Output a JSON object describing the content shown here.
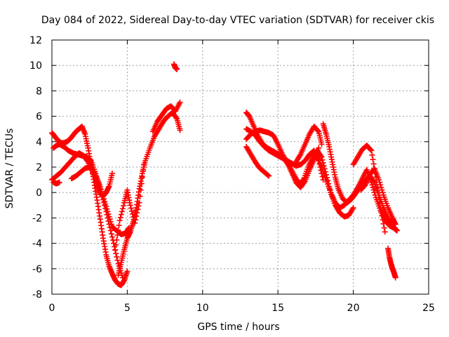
{
  "chart_data": {
    "type": "scatter",
    "title": "Day 084 of 2022, Sidereal Day-to-day VTEC variation (SDTVAR) for receiver ckis",
    "xlabel": "GPS time / hours",
    "ylabel": "SDTVAR / TECUs",
    "xlim": [
      0,
      25
    ],
    "ylim": [
      -8,
      12
    ],
    "xticks": [
      0,
      5,
      10,
      15,
      20,
      25
    ],
    "yticks": [
      -8,
      -6,
      -4,
      -2,
      0,
      2,
      4,
      6,
      8,
      10,
      12
    ],
    "grid": true,
    "marker": "+",
    "color": "#ff0000",
    "series": [
      {
        "name": "track-1",
        "x": [
          0.0,
          0.2,
          0.4,
          0.6,
          0.8,
          1.0,
          1.2,
          1.4,
          1.6,
          1.8,
          2.0,
          2.2,
          2.4,
          2.6,
          2.8,
          3.0,
          3.2,
          3.4,
          3.6,
          3.8,
          4.0,
          4.2,
          4.4,
          4.6,
          4.8,
          5.0
        ],
        "y": [
          4.7,
          4.4,
          4.1,
          3.9,
          3.9,
          4.0,
          4.2,
          4.5,
          4.8,
          5.0,
          5.2,
          4.6,
          3.5,
          2.2,
          0.8,
          -0.6,
          -2.1,
          -3.6,
          -4.9,
          -5.8,
          -6.4,
          -6.9,
          -7.2,
          -7.3,
          -6.9,
          -6.2
        ]
      },
      {
        "name": "track-2",
        "x": [
          0.1,
          0.3,
          0.5,
          0.8,
          1.1,
          1.4,
          1.7,
          2.0,
          2.3,
          2.6,
          2.9,
          3.2,
          3.5,
          3.8,
          4.1,
          4.4,
          4.7
        ],
        "y": [
          3.5,
          3.7,
          3.8,
          3.6,
          3.3,
          3.1,
          3.0,
          2.9,
          2.8,
          2.5,
          1.5,
          0.3,
          -1.0,
          -2.5,
          -4.0,
          -5.6,
          -6.7
        ]
      },
      {
        "name": "track-3",
        "x": [
          0.0,
          0.3,
          0.6,
          0.9,
          1.2,
          1.5,
          1.8,
          2.1,
          2.4,
          2.7,
          3.0,
          3.2,
          3.4,
          3.6,
          3.8,
          4.0
        ],
        "y": [
          1.0,
          1.3,
          1.6,
          2.0,
          2.4,
          2.8,
          3.1,
          2.9,
          2.4,
          1.6,
          0.5,
          -0.1,
          -0.3,
          0.0,
          0.5,
          1.5
        ]
      },
      {
        "name": "track-4",
        "x": [
          1.3,
          1.6,
          1.9,
          2.2,
          2.5,
          2.8,
          3.1,
          3.4,
          3.7,
          4.0,
          4.3,
          4.6,
          4.9,
          5.1
        ],
        "y": [
          1.1,
          1.3,
          1.6,
          1.9,
          2.0,
          1.6,
          0.8,
          -0.3,
          -1.5,
          -2.7,
          -3.0,
          -3.3,
          -3.2,
          -2.8
        ]
      },
      {
        "name": "track-5",
        "x": [
          0.1,
          0.3,
          0.5
        ],
        "y": [
          0.8,
          0.7,
          0.8
        ]
      },
      {
        "name": "track-6",
        "x": [
          4.4,
          4.6,
          4.8,
          5.0,
          5.2,
          5.4,
          5.6,
          5.8,
          6.0,
          6.2,
          6.5,
          6.8,
          7.1,
          7.4,
          7.7,
          8.0,
          8.3,
          8.5
        ],
        "y": [
          -6.5,
          -5.5,
          -4.5,
          -3.6,
          -3.1,
          -2.3,
          -1.2,
          0.3,
          1.5,
          2.5,
          3.5,
          4.4,
          5.0,
          5.6,
          6.0,
          6.3,
          5.8,
          4.9
        ]
      },
      {
        "name": "track-7",
        "x": [
          4.2,
          4.5,
          4.8,
          5.0,
          5.2,
          5.5,
          5.8,
          6.1
        ],
        "y": [
          -4.5,
          -2.2,
          -0.8,
          0.2,
          -1.0,
          -2.4,
          -0.8,
          2.2
        ]
      },
      {
        "name": "track-8",
        "x": [
          6.7,
          7.0,
          7.3,
          7.6,
          7.9,
          8.2,
          8.5
        ],
        "y": [
          4.8,
          5.6,
          6.1,
          6.6,
          6.8,
          6.4,
          7.1
        ]
      },
      {
        "name": "track-9",
        "x": [
          8.1,
          8.2,
          8.3
        ],
        "y": [
          10.1,
          9.8,
          9.7
        ]
      },
      {
        "name": "track-10",
        "x": [
          12.9,
          13.1,
          13.4,
          13.7,
          14.0,
          14.3,
          14.6,
          14.9,
          15.2,
          15.5,
          15.8,
          16.1,
          16.4,
          16.7,
          17.0,
          17.3,
          17.6,
          17.9,
          18.2,
          18.5,
          18.8,
          19.1,
          19.4,
          19.7,
          20.0
        ],
        "y": [
          6.3,
          6.0,
          5.2,
          4.4,
          3.8,
          3.5,
          3.3,
          3.1,
          2.9,
          2.5,
          2.0,
          1.3,
          0.7,
          1.0,
          2.0,
          2.8,
          3.3,
          2.8,
          1.4,
          0.0,
          -1.0,
          -1.6,
          -1.9,
          -1.8,
          -1.2
        ]
      },
      {
        "name": "track-11",
        "x": [
          12.9,
          13.2,
          13.5,
          13.8,
          14.1,
          14.4,
          14.7,
          15.0,
          15.3,
          15.6,
          15.9,
          16.2,
          16.5,
          16.8,
          17.1,
          17.4,
          17.7,
          18.0
        ],
        "y": [
          5.0,
          4.8,
          4.5,
          4.0,
          3.6,
          3.3,
          3.1,
          2.9,
          2.7,
          2.5,
          2.3,
          2.1,
          2.2,
          2.5,
          3.0,
          3.3,
          2.5,
          1.0
        ]
      },
      {
        "name": "track-12",
        "x": [
          12.9,
          13.2,
          13.5,
          13.8,
          14.1,
          14.4,
          14.7,
          15.0,
          15.3,
          15.6,
          15.9,
          16.2,
          16.5,
          16.8,
          17.1,
          17.4,
          17.7
        ],
        "y": [
          4.2,
          4.6,
          4.8,
          4.9,
          4.8,
          4.7,
          4.5,
          3.8,
          3.0,
          2.4,
          1.6,
          0.8,
          0.4,
          0.9,
          1.8,
          2.6,
          3.5
        ]
      },
      {
        "name": "track-13",
        "x": [
          12.9,
          13.2,
          13.5,
          13.8,
          14.1,
          14.4
        ],
        "y": [
          3.6,
          3.0,
          2.4,
          1.9,
          1.6,
          1.3
        ]
      },
      {
        "name": "track-14",
        "x": [
          16.2,
          16.5,
          16.8,
          17.1,
          17.4,
          17.7,
          17.9
        ],
        "y": [
          2.4,
          3.0,
          3.8,
          4.6,
          5.2,
          4.8,
          3.8
        ]
      },
      {
        "name": "track-15",
        "x": [
          18.0,
          18.2,
          18.4,
          18.6,
          18.8,
          19.0,
          19.3,
          19.6,
          19.9,
          20.2,
          20.5,
          20.8,
          21.1,
          21.4,
          21.7,
          22.0,
          22.3,
          22.6,
          22.9
        ],
        "y": [
          5.4,
          4.6,
          3.6,
          2.4,
          1.2,
          0.3,
          -0.5,
          -0.8,
          -0.5,
          0.0,
          0.5,
          1.0,
          1.3,
          0.8,
          -0.2,
          -1.2,
          -2.0,
          -2.6,
          -3.0
        ]
      },
      {
        "name": "track-16",
        "x": [
          17.6,
          17.9,
          18.2,
          18.5,
          18.8,
          19.1,
          19.4,
          19.7,
          20.0,
          20.3,
          20.6,
          20.9,
          21.2,
          21.5,
          21.8,
          22.1,
          22.4,
          22.7,
          22.9
        ],
        "y": [
          3.0,
          2.0,
          1.0,
          0.0,
          -0.8,
          -1.2,
          -1.0,
          -0.6,
          -0.2,
          0.4,
          1.1,
          1.8,
          0.8,
          -0.4,
          -1.4,
          -2.2,
          -2.6,
          -2.8,
          -3.0
        ]
      },
      {
        "name": "track-17",
        "x": [
          20.0,
          20.3,
          20.6,
          20.9,
          21.2,
          21.5,
          21.8,
          22.1
        ],
        "y": [
          2.2,
          2.8,
          3.4,
          3.7,
          3.3,
          1.2,
          -1.2,
          -3.1
        ]
      },
      {
        "name": "track-18",
        "x": [
          20.5,
          20.8,
          21.1,
          21.4,
          21.7,
          22.0,
          22.3,
          22.6,
          22.8
        ],
        "y": [
          0.2,
          0.6,
          1.4,
          1.9,
          1.0,
          -0.2,
          -1.2,
          -2.0,
          -2.5
        ]
      },
      {
        "name": "track-19",
        "x": [
          22.3,
          22.4,
          22.5,
          22.6,
          22.7,
          22.8
        ],
        "y": [
          -4.4,
          -5.1,
          -5.6,
          -6.0,
          -6.3,
          -6.7
        ]
      }
    ]
  }
}
